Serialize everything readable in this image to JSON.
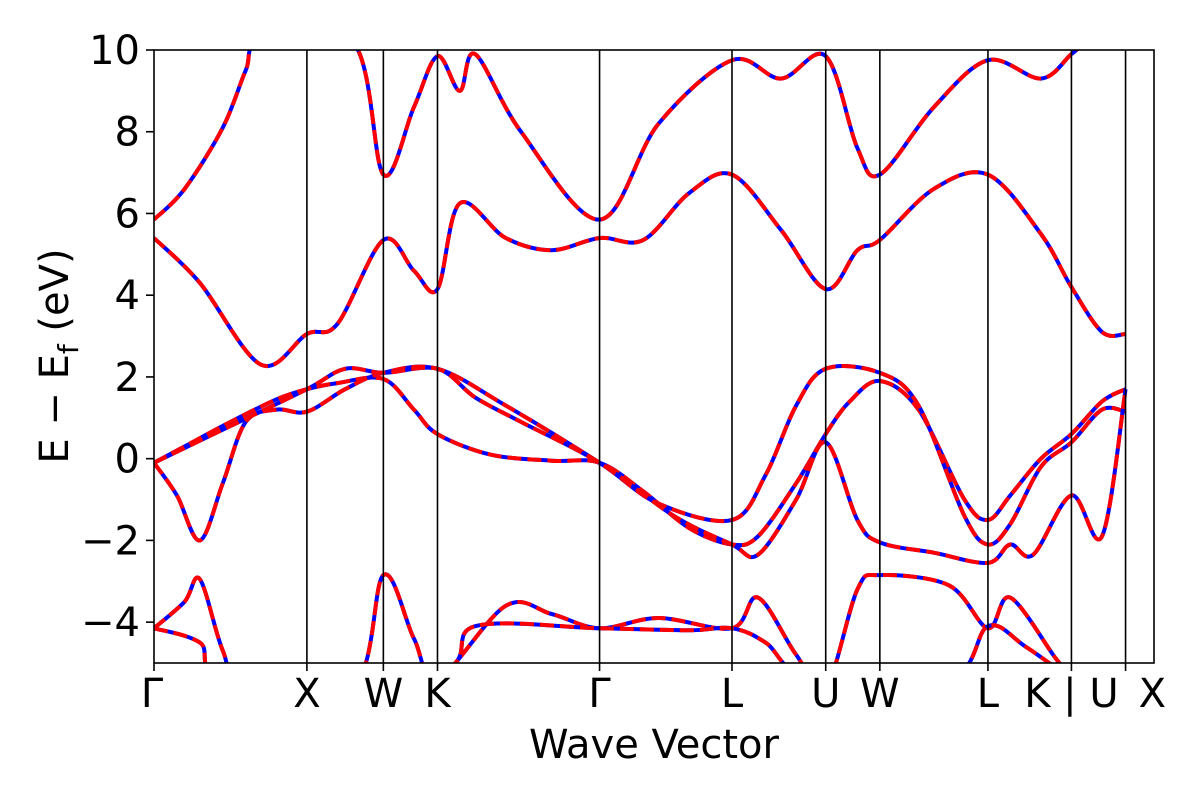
{
  "chart_data": {
    "type": "line",
    "title": "",
    "xlabel": "Wave Vector",
    "ylabel": "E − E_f (eV)",
    "ylabel_main": "E − E",
    "ylabel_sub": "f",
    "ylabel_unit": " (eV)",
    "ylim": [
      -5,
      10
    ],
    "xlim": [
      0,
      6.54
    ],
    "yticks": [
      -4,
      -2,
      0,
      2,
      4,
      6,
      8,
      10
    ],
    "ytick_labels": [
      "−4",
      "−2",
      "0",
      "2",
      "4",
      "6",
      "8",
      "10"
    ],
    "kpoints": [
      {
        "label": "Γ",
        "x": 0.0
      },
      {
        "label": "X",
        "x": 1.0
      },
      {
        "label": "W",
        "x": 1.5
      },
      {
        "label": "K",
        "x": 1.854
      },
      {
        "label": "Γ",
        "x": 2.914
      },
      {
        "label": "L",
        "x": 3.78
      },
      {
        "label": "U",
        "x": 4.393
      },
      {
        "label": "W",
        "x": 4.747
      },
      {
        "label": "L",
        "x": 5.454
      },
      {
        "label": "K | U",
        "x": 6.0
      },
      {
        "label": "X",
        "x": 6.354
      }
    ],
    "grid": false,
    "legend": "none",
    "colors": {
      "series_a": "#0000ff",
      "series_b": "#ff0000",
      "vline": "#000000"
    },
    "bands": [
      [
        [
          0,
          -0.1
        ],
        [
          0.2,
          0.3
        ],
        [
          0.5,
          0.9
        ],
        [
          0.8,
          1.45
        ],
        [
          1.0,
          1.7
        ],
        [
          1.2,
          1.85
        ],
        [
          1.5,
          1.95
        ],
        [
          1.7,
          1.2
        ],
        [
          1.854,
          0.6
        ],
        [
          2.2,
          0.1
        ],
        [
          2.6,
          -0.05
        ],
        [
          2.914,
          -0.1
        ],
        [
          3.2,
          -0.8
        ],
        [
          3.5,
          -1.7
        ],
        [
          3.78,
          -2.1
        ],
        [
          3.95,
          -1.9
        ],
        [
          4.2,
          -0.6
        ],
        [
          4.393,
          0.6
        ],
        [
          4.55,
          1.4
        ],
        [
          4.747,
          1.9
        ],
        [
          5.0,
          1.2
        ],
        [
          5.3,
          -1.0
        ],
        [
          5.454,
          -1.5
        ],
        [
          5.6,
          -0.9
        ],
        [
          5.8,
          0.0
        ],
        [
          6.0,
          0.6
        ],
        [
          6.2,
          1.4
        ],
        [
          6.354,
          1.7
        ]
      ],
      [
        [
          0,
          -0.1
        ],
        [
          0.15,
          -0.9
        ],
        [
          0.3,
          -2.0
        ],
        [
          0.45,
          -0.6
        ],
        [
          0.6,
          0.9
        ],
        [
          0.8,
          1.2
        ],
        [
          1.0,
          1.15
        ],
        [
          1.25,
          1.7
        ],
        [
          1.5,
          2.1
        ],
        [
          1.854,
          2.2
        ],
        [
          2.3,
          1.3
        ],
        [
          2.914,
          -0.1
        ],
        [
          3.3,
          -1.1
        ],
        [
          3.78,
          -1.5
        ],
        [
          4.0,
          -0.4
        ],
        [
          4.2,
          1.3
        ],
        [
          4.393,
          2.2
        ],
        [
          4.747,
          2.1
        ],
        [
          5.0,
          1.3
        ],
        [
          5.3,
          -1.4
        ],
        [
          5.454,
          -2.1
        ],
        [
          5.6,
          -1.6
        ],
        [
          5.8,
          -0.2
        ],
        [
          6.0,
          0.4
        ],
        [
          6.2,
          1.2
        ],
        [
          6.354,
          1.15
        ]
      ],
      [
        [
          0,
          -0.1
        ],
        [
          0.5,
          0.8
        ],
        [
          1.0,
          1.7
        ],
        [
          1.25,
          2.2
        ],
        [
          1.5,
          2.1
        ],
        [
          1.854,
          2.2
        ],
        [
          2.1,
          1.5
        ],
        [
          2.4,
          0.9
        ],
        [
          2.914,
          -0.1
        ],
        [
          3.4,
          -1.4
        ],
        [
          3.78,
          -2.1
        ],
        [
          3.95,
          -2.35
        ],
        [
          4.2,
          -1.0
        ],
        [
          4.393,
          0.4
        ],
        [
          4.6,
          -1.5
        ],
        [
          4.747,
          -2.05
        ],
        [
          5.1,
          -2.3
        ],
        [
          5.454,
          -2.55
        ],
        [
          5.6,
          -2.1
        ],
        [
          5.75,
          -2.35
        ],
        [
          6.0,
          -0.9
        ],
        [
          6.2,
          -1.9
        ],
        [
          6.354,
          1.7
        ]
      ],
      [
        [
          0,
          5.4
        ],
        [
          0.3,
          4.3
        ],
        [
          0.7,
          2.3
        ],
        [
          1.0,
          3.05
        ],
        [
          1.2,
          3.3
        ],
        [
          1.5,
          5.35
        ],
        [
          1.7,
          4.6
        ],
        [
          1.854,
          4.15
        ],
        [
          2.0,
          6.25
        ],
        [
          2.3,
          5.4
        ],
        [
          2.6,
          5.1
        ],
        [
          2.914,
          5.4
        ],
        [
          3.2,
          5.35
        ],
        [
          3.5,
          6.5
        ],
        [
          3.78,
          6.95
        ],
        [
          4.1,
          5.6
        ],
        [
          4.393,
          4.15
        ],
        [
          4.6,
          5.1
        ],
        [
          4.747,
          5.35
        ],
        [
          5.1,
          6.6
        ],
        [
          5.454,
          6.95
        ],
        [
          5.8,
          5.5
        ],
        [
          6.0,
          4.2
        ],
        [
          6.2,
          3.1
        ],
        [
          6.354,
          3.05
        ]
      ],
      [
        [
          0,
          5.85
        ],
        [
          0.2,
          6.6
        ],
        [
          0.45,
          8.1
        ],
        [
          0.6,
          9.5
        ],
        [
          0.7,
          10.2
        ],
        [
          1.3,
          10.2
        ],
        [
          1.5,
          6.95
        ],
        [
          1.7,
          8.6
        ],
        [
          1.854,
          9.85
        ],
        [
          2.0,
          9.0
        ],
        [
          2.1,
          9.9
        ],
        [
          2.4,
          8.0
        ],
        [
          2.914,
          5.85
        ],
        [
          3.3,
          8.2
        ],
        [
          3.78,
          9.75
        ],
        [
          4.1,
          9.3
        ],
        [
          4.393,
          9.85
        ],
        [
          4.6,
          7.6
        ],
        [
          4.747,
          6.95
        ],
        [
          5.1,
          8.6
        ],
        [
          5.454,
          9.75
        ],
        [
          5.8,
          9.3
        ],
        [
          6.0,
          9.9
        ],
        [
          6.1,
          10.2
        ]
      ],
      [
        [
          0,
          -4.15
        ],
        [
          0.2,
          -3.5
        ],
        [
          0.3,
          -2.95
        ],
        [
          0.45,
          -4.7
        ],
        [
          0.6,
          -5.6
        ],
        [
          1.3,
          -5.6
        ],
        [
          1.5,
          -2.85
        ],
        [
          1.7,
          -4.4
        ],
        [
          1.854,
          -5.4
        ],
        [
          2.3,
          -3.6
        ],
        [
          2.6,
          -3.8
        ],
        [
          2.914,
          -4.15
        ],
        [
          3.3,
          -3.9
        ],
        [
          3.78,
          -4.15
        ],
        [
          3.95,
          -3.4
        ],
        [
          4.2,
          -4.8
        ],
        [
          4.393,
          -5.6
        ],
        [
          4.6,
          -3.2
        ],
        [
          4.747,
          -2.85
        ],
        [
          5.2,
          -3.1
        ],
        [
          5.454,
          -4.15
        ],
        [
          5.6,
          -3.4
        ],
        [
          5.9,
          -4.9
        ],
        [
          6.0,
          -5.3
        ]
      ],
      [
        [
          0,
          -4.15
        ],
        [
          0.3,
          -4.5
        ],
        [
          0.5,
          -5.4
        ],
        [
          1.854,
          -5.2
        ],
        [
          2.1,
          -4.1
        ],
        [
          2.914,
          -4.15
        ],
        [
          3.5,
          -4.2
        ],
        [
          3.78,
          -4.15
        ],
        [
          4.0,
          -4.5
        ],
        [
          4.3,
          -5.4
        ],
        [
          5.2,
          -5.4
        ],
        [
          5.454,
          -4.1
        ],
        [
          5.7,
          -4.6
        ],
        [
          6.0,
          -5.4
        ]
      ]
    ]
  }
}
